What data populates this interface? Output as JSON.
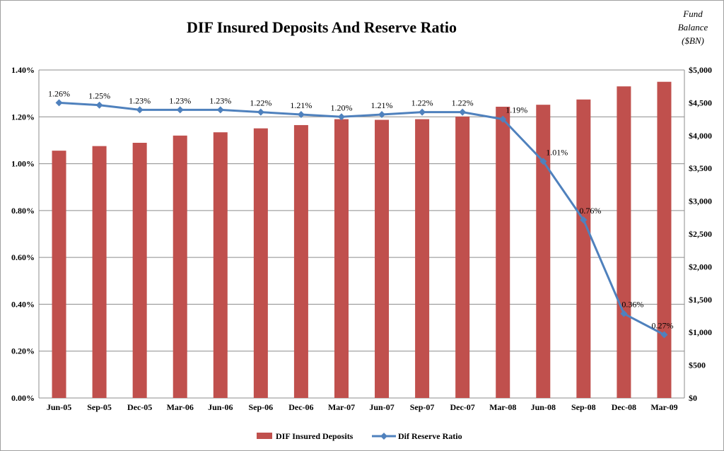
{
  "title": "DIF Insured Deposits And Reserve Ratio",
  "right_axis_title": [
    "Fund",
    "Balance",
    "($BN)"
  ],
  "colors": {
    "bars": "#C0504D",
    "line": "#4F81BD",
    "grid": "#8c8c8c"
  },
  "chart_data": {
    "type": "bar",
    "categories": [
      "Jun-05",
      "Sep-05",
      "Dec-05",
      "Mar-06",
      "Jun-06",
      "Sep-06",
      "Dec-06",
      "Mar-07",
      "Jun-07",
      "Sep-07",
      "Dec-07",
      "Mar-08",
      "Jun-08",
      "Sep-08",
      "Dec-08",
      "Mar-09"
    ],
    "series": [
      {
        "name": "DIF Insured Deposits",
        "type": "bar",
        "axis": "right",
        "values": [
          3770,
          3840,
          3890,
          4000,
          4050,
          4110,
          4160,
          4250,
          4240,
          4250,
          4290,
          4440,
          4470,
          4550,
          4750,
          4820
        ]
      },
      {
        "name": "Dif Reserve Ratio",
        "type": "line",
        "axis": "left",
        "values": [
          1.26,
          1.25,
          1.23,
          1.23,
          1.23,
          1.22,
          1.21,
          1.2,
          1.21,
          1.22,
          1.22,
          1.19,
          1.01,
          0.76,
          0.36,
          0.27
        ],
        "labels": [
          "1.26%",
          "1.25%",
          "1.23%",
          "1.23%",
          "1.23%",
          "1.22%",
          "1.21%",
          "1.20%",
          "1.21%",
          "1.22%",
          "1.22%",
          "1.19%",
          "1.01%",
          "0.76%",
          "0.36%",
          "0.27%"
        ]
      }
    ],
    "left_axis": {
      "min": 0,
      "max": 1.4,
      "ticks": [
        "0.00%",
        "0.20%",
        "0.40%",
        "0.60%",
        "0.80%",
        "1.00%",
        "1.20%",
        "1.40%"
      ]
    },
    "right_axis": {
      "min": 0,
      "max": 5000,
      "ticks": [
        "$0",
        "$500",
        "$1,000",
        "$1,500",
        "$2,000",
        "$2,500",
        "$3,000",
        "$3,500",
        "$4,000",
        "$4,500",
        "$5,000"
      ]
    },
    "grid": true,
    "legend_position": "bottom"
  }
}
